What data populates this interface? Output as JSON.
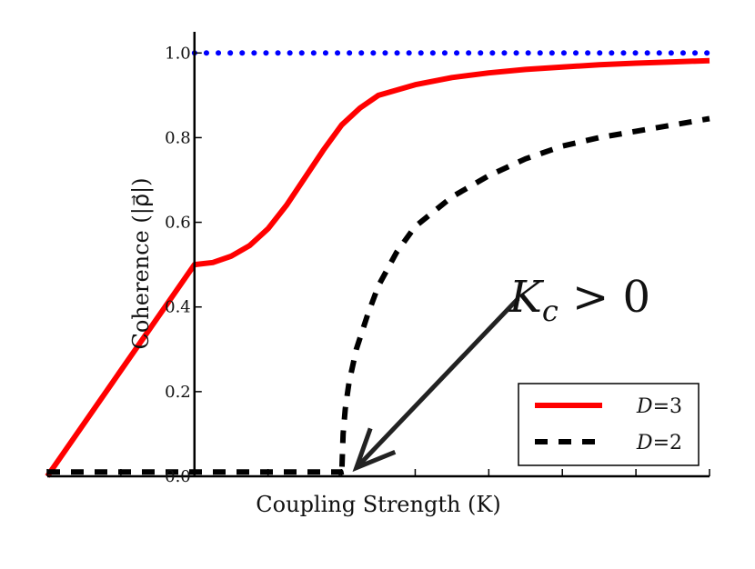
{
  "chart_data": {
    "type": "line",
    "title": "",
    "xlabel": "Coupling Strength (K)",
    "ylabel": "Coherence (|ρ⃗|)",
    "xlim": [
      -2.0,
      7.0
    ],
    "ylim": [
      0.0,
      1.05
    ],
    "yticks": [
      0.0,
      0.2,
      0.4,
      0.6,
      0.8,
      1.0
    ],
    "ytick_labels": [
      "0.0",
      "0.2",
      "0.4",
      "0.6",
      "0.8",
      "1.0"
    ],
    "xticks": [
      -2,
      -1,
      0,
      1,
      2,
      3,
      4,
      5,
      6,
      7
    ],
    "legend_placement": "bottom-right",
    "grid": false,
    "series": [
      {
        "name": "D=3",
        "color": "#ff0000",
        "style": "solid",
        "x": [
          -2.0,
          0.0,
          0.25,
          0.5,
          0.75,
          1.0,
          1.25,
          1.5,
          1.75,
          2.0,
          2.25,
          2.5,
          3.0,
          3.5,
          4.0,
          4.5,
          5.0,
          5.5,
          6.0,
          6.5,
          7.0
        ],
        "y": [
          0.0,
          0.5,
          0.505,
          0.52,
          0.545,
          0.585,
          0.64,
          0.705,
          0.77,
          0.83,
          0.87,
          0.9,
          0.925,
          0.942,
          0.953,
          0.961,
          0.967,
          0.972,
          0.976,
          0.979,
          0.982
        ]
      },
      {
        "name": "D=2",
        "color": "#000000",
        "style": "dashed",
        "x": [
          -2.0,
          1.99,
          2.0,
          2.02,
          2.05,
          2.1,
          2.2,
          2.35,
          2.5,
          2.75,
          3.0,
          3.5,
          4.0,
          4.5,
          5.0,
          5.5,
          6.0,
          6.5,
          7.0
        ],
        "y": [
          0.01,
          0.01,
          0.0,
          0.1,
          0.16,
          0.22,
          0.3,
          0.38,
          0.45,
          0.53,
          0.59,
          0.66,
          0.71,
          0.75,
          0.78,
          0.8,
          0.815,
          0.83,
          0.845
        ]
      },
      {
        "name": "",
        "color": "#0000ff",
        "style": "dotted",
        "x": [
          0.0,
          7.0
        ],
        "y": [
          1.0,
          1.0
        ]
      }
    ],
    "legend": [
      {
        "label_var": "D",
        "label_val": "3",
        "color": "#ff0000",
        "style": "solid"
      },
      {
        "label_var": "D",
        "label_val": "2",
        "color": "#000000",
        "style": "dashed"
      }
    ],
    "annotation": {
      "text_var": "K",
      "text_sub": "c",
      "text_rest": " > 0",
      "arrow_from": [
        4.4,
        0.42
      ],
      "arrow_to": [
        2.2,
        0.02
      ]
    }
  }
}
